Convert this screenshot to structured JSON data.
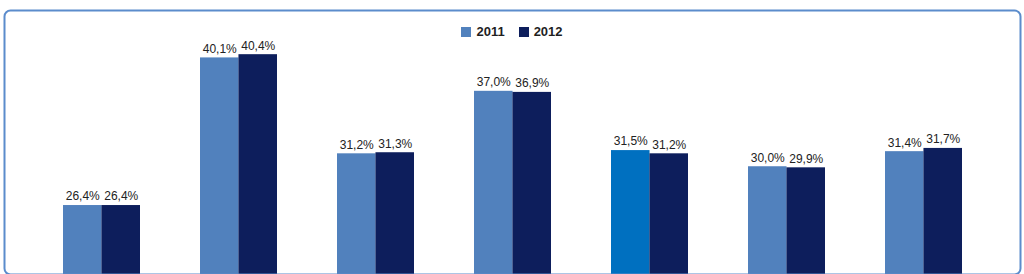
{
  "chart_data": {
    "type": "bar",
    "categories": [
      null,
      null,
      null,
      null,
      null,
      null,
      null
    ],
    "series": [
      {
        "name": "2011",
        "color": "#5181bd",
        "colors": [
          "#5181bd",
          "#5181bd",
          "#5181bd",
          "#5181bd",
          "#0070c0",
          "#5181bd",
          "#5181bd"
        ],
        "values": [
          26.4,
          40.1,
          31.2,
          37.0,
          31.5,
          30.0,
          31.4
        ],
        "value_labels": [
          "26,4%",
          "40,1%",
          "31,2%",
          "37,0%",
          "31,5%",
          "30,0%",
          "31,4%"
        ]
      },
      {
        "name": "2012",
        "color": "#0d1e5c",
        "values": [
          26.4,
          40.4,
          31.3,
          36.9,
          31.2,
          29.9,
          31.7
        ],
        "value_labels": [
          "26,4%",
          "40,4%",
          "31,3%",
          "36,9%",
          "31,2%",
          "29,9%",
          "31,7%"
        ]
      }
    ],
    "ylim": [
      20,
      44.5
    ],
    "yticks": [],
    "data_labels": true,
    "tick_labels": false,
    "legend": "top"
  }
}
